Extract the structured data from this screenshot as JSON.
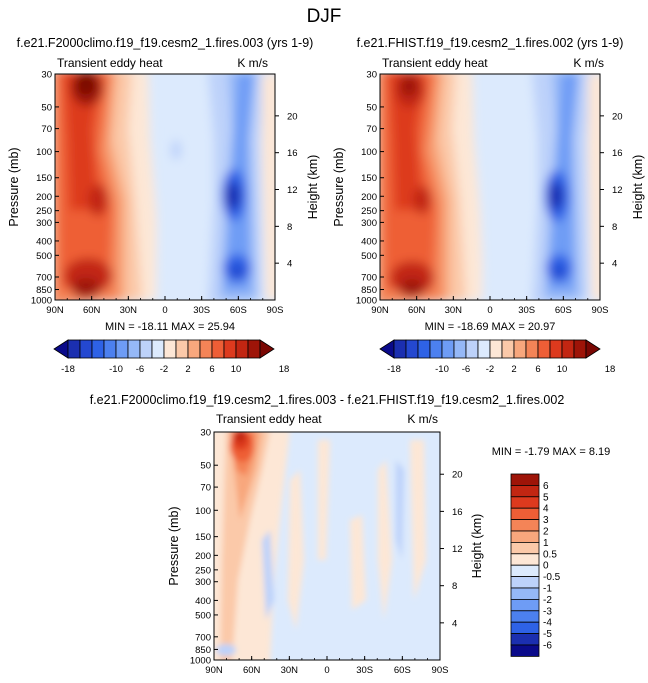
{
  "page_title": "DJF",
  "units": "K m/s",
  "field_name": "Transient eddy heat",
  "colors": {
    "neg": [
      "#0a0a8a",
      "#1b2fb0",
      "#2448d0",
      "#2e62e6",
      "#4c80ef",
      "#6e9cf5",
      "#95b8f7",
      "#bdd2fa",
      "#dceafd"
    ],
    "pos": [
      "#fde7d6",
      "#fbc9a9",
      "#f8a77d",
      "#f48457",
      "#ee5e36",
      "#dd3a1e",
      "#c22612",
      "#9e1408",
      "#7a0703"
    ]
  },
  "chart_data": [
    {
      "type": "heatmap",
      "title": "f.e21.F2000climo.f19_f19.cesm2_1.fires.003 (yrs 1-9)",
      "ylabel": "Pressure (mb)",
      "y2label": "Height (km)",
      "x_ticks": [
        "90N",
        "60N",
        "30N",
        "0",
        "30S",
        "60S",
        "90S"
      ],
      "y_ticks": [
        30,
        50,
        70,
        100,
        150,
        200,
        250,
        300,
        400,
        500,
        700,
        850,
        1000
      ],
      "y2_ticks": [
        20,
        16,
        12,
        8,
        4
      ],
      "min_max": "MIN = -18.11   MAX =  25.94",
      "min": -18.11,
      "max": 25.94,
      "colorbar_levels": [
        -18,
        -16,
        -14,
        -12,
        -10,
        -8,
        -6,
        -4,
        -2,
        0,
        2,
        4,
        6,
        8,
        10,
        12,
        14,
        16,
        18
      ],
      "colorbar_labels": [
        "-18",
        "-10",
        "-6",
        "-2",
        "2",
        "6",
        "10",
        "18"
      ]
    },
    {
      "type": "heatmap",
      "title": "f.e21.FHIST.f19_f19.cesm2_1.fires.002 (yrs 1-9)",
      "ylabel": "Pressure (mb)",
      "y2label": "Height (km)",
      "x_ticks": [
        "90N",
        "60N",
        "30N",
        "0",
        "30S",
        "60S",
        "90S"
      ],
      "y_ticks": [
        30,
        50,
        70,
        100,
        150,
        200,
        250,
        300,
        400,
        500,
        700,
        850,
        1000
      ],
      "y2_ticks": [
        20,
        16,
        12,
        8,
        4
      ],
      "min_max": "MIN = -18.69   MAX =  20.97",
      "min": -18.69,
      "max": 20.97,
      "colorbar_levels": [
        -18,
        -16,
        -14,
        -12,
        -10,
        -8,
        -6,
        -4,
        -2,
        0,
        2,
        4,
        6,
        8,
        10,
        12,
        14,
        16,
        18
      ],
      "colorbar_labels": [
        "-18",
        "-10",
        "-6",
        "-2",
        "2",
        "6",
        "10",
        "18"
      ]
    },
    {
      "type": "heatmap",
      "title": "f.e21.F2000climo.f19_f19.cesm2_1.fires.003 - f.e21.FHIST.f19_f19.cesm2_1.fires.002",
      "ylabel": "Pressure (mb)",
      "y2label": "Height (km)",
      "x_ticks": [
        "90N",
        "60N",
        "30N",
        "0",
        "30S",
        "60S",
        "90S"
      ],
      "y_ticks": [
        30,
        50,
        70,
        100,
        150,
        200,
        250,
        300,
        400,
        500,
        700,
        850,
        1000
      ],
      "y2_ticks": [
        20,
        16,
        12,
        8,
        4
      ],
      "min_max": "MIN =  -1.79   MAX =   8.19",
      "min": -1.79,
      "max": 8.19,
      "colorbar_labels": [
        "6",
        "5",
        "4",
        "3",
        "2",
        "1",
        "0.5",
        "0",
        "-0.5",
        "-1",
        "-2",
        "-3",
        "-4",
        "-5",
        "-6"
      ]
    }
  ]
}
